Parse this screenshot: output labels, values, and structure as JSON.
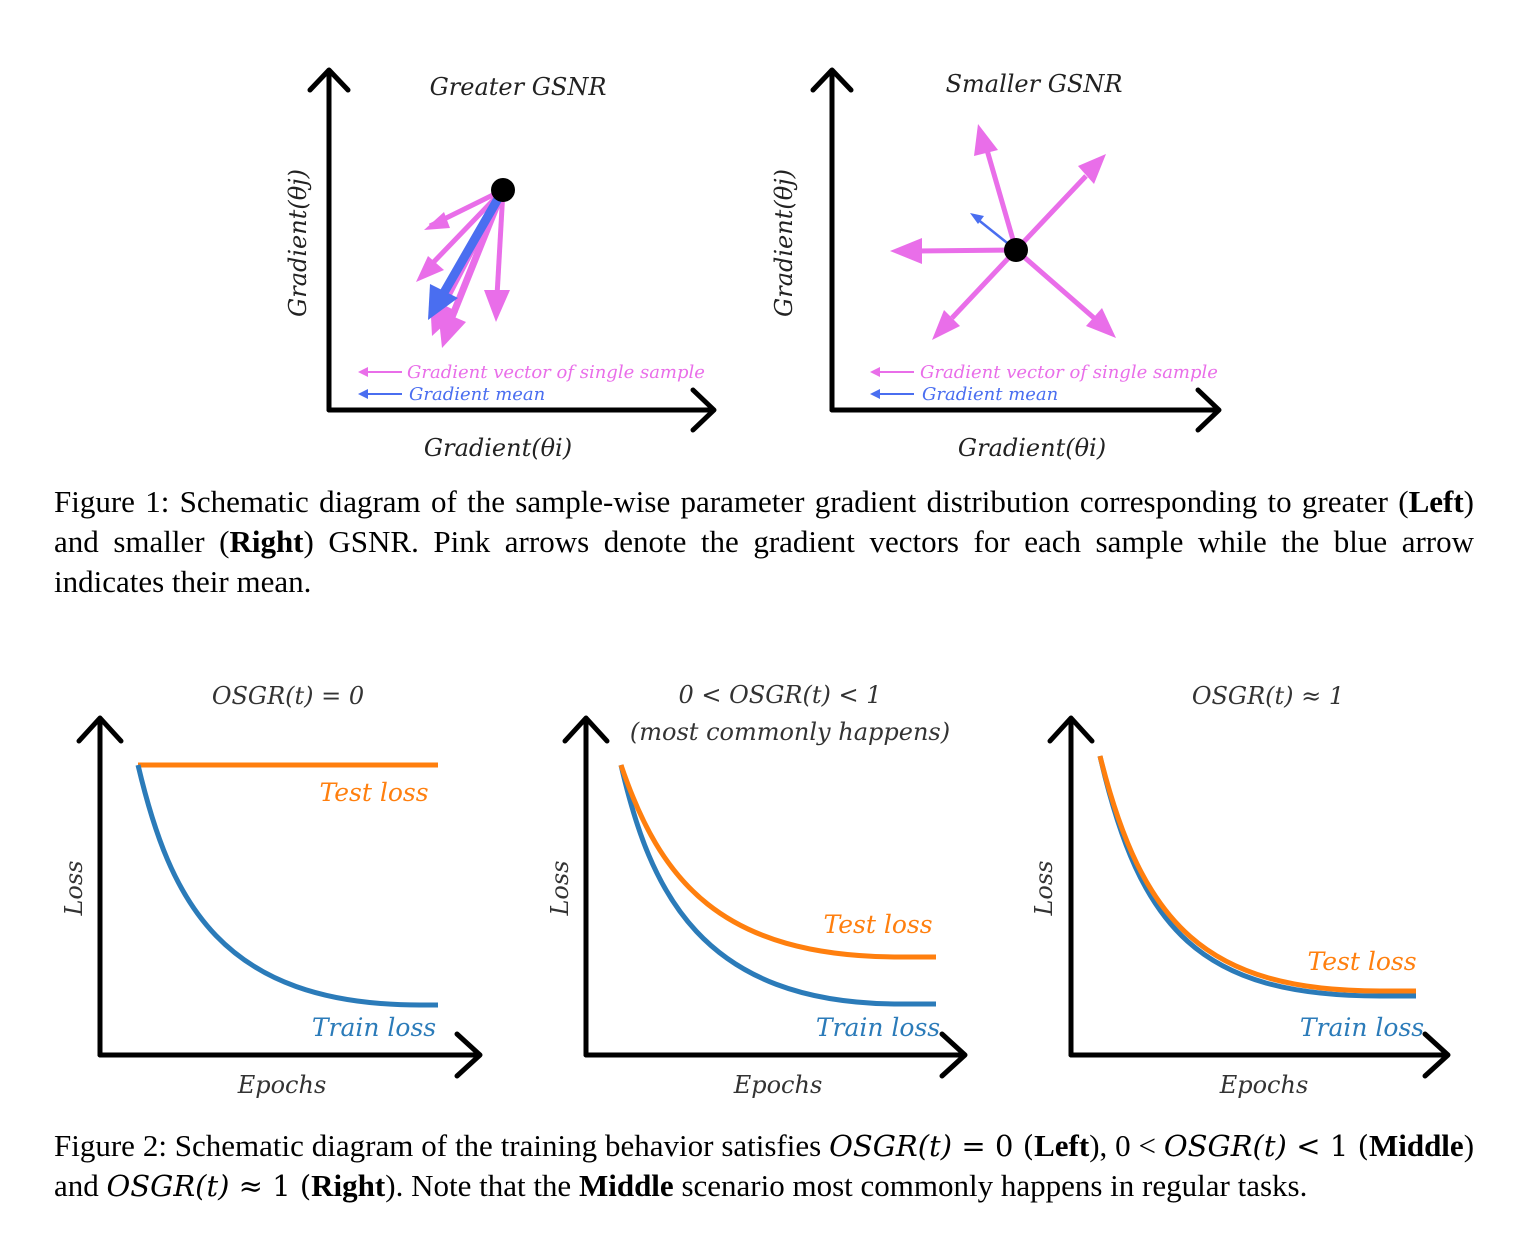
{
  "colors": {
    "pink": "#e96ee9",
    "blue": "#4a6ef0",
    "orange": "#ff7f0e",
    "steel": "#2b7bb9",
    "axis": "#000000"
  },
  "figure1": {
    "left": {
      "title": "Greater GSNR",
      "xlabel": "Gradient(θi)",
      "ylabel": "Gradient(θj)",
      "legend_pink": "Gradient vector of single sample",
      "legend_blue": "Gradient mean"
    },
    "right": {
      "title": "Smaller GSNR",
      "xlabel": "Gradient(θi)",
      "ylabel": "Gradient(θj)",
      "legend_pink": "Gradient vector of single sample",
      "legend_blue": "Gradient mean"
    },
    "caption": {
      "part1": "Figure 1: Schematic diagram of the sample-wise parameter gradient distribution corresponding to greater (",
      "left_word": "Left",
      "part2": ") and smaller (",
      "right_word": "Right",
      "part3": ") GSNR. Pink arrows denote the gradient vectors for each sample while the blue arrow indicates their mean."
    }
  },
  "figure2": {
    "panels": [
      {
        "title": "OSGR(t) = 0",
        "subtitle": "",
        "ylabel": "Loss",
        "xlabel": "Epochs",
        "test_label": "Test loss",
        "train_label": "Train loss"
      },
      {
        "title": "0 < OSGR(t) < 1",
        "subtitle": "(most commonly happens)",
        "ylabel": "Loss",
        "xlabel": "Epochs",
        "test_label": "Test loss",
        "train_label": "Train loss"
      },
      {
        "title": "OSGR(t) ≈ 1",
        "subtitle": "",
        "ylabel": "Loss",
        "xlabel": "Epochs",
        "test_label": "Test loss",
        "train_label": "Train loss"
      }
    ],
    "caption": {
      "part1": "Figure 2:  Schematic diagram of the training behavior satisfies ",
      "m1": "OSGR(t)",
      "eq": " = 0 (",
      "left_word": "Left",
      "part2": "), 0 < ",
      "m2": "OSGR(t)",
      "lt": " < 1 (",
      "middle_word": "Middle",
      "part3": ") and ",
      "m3": "OSGR(t)",
      "approx": " ≈ 1 (",
      "right_word": "Right",
      "part4": "). Note that the ",
      "middle_word2": "Middle",
      "part5": " scenario most commonly happens in regular tasks."
    }
  }
}
